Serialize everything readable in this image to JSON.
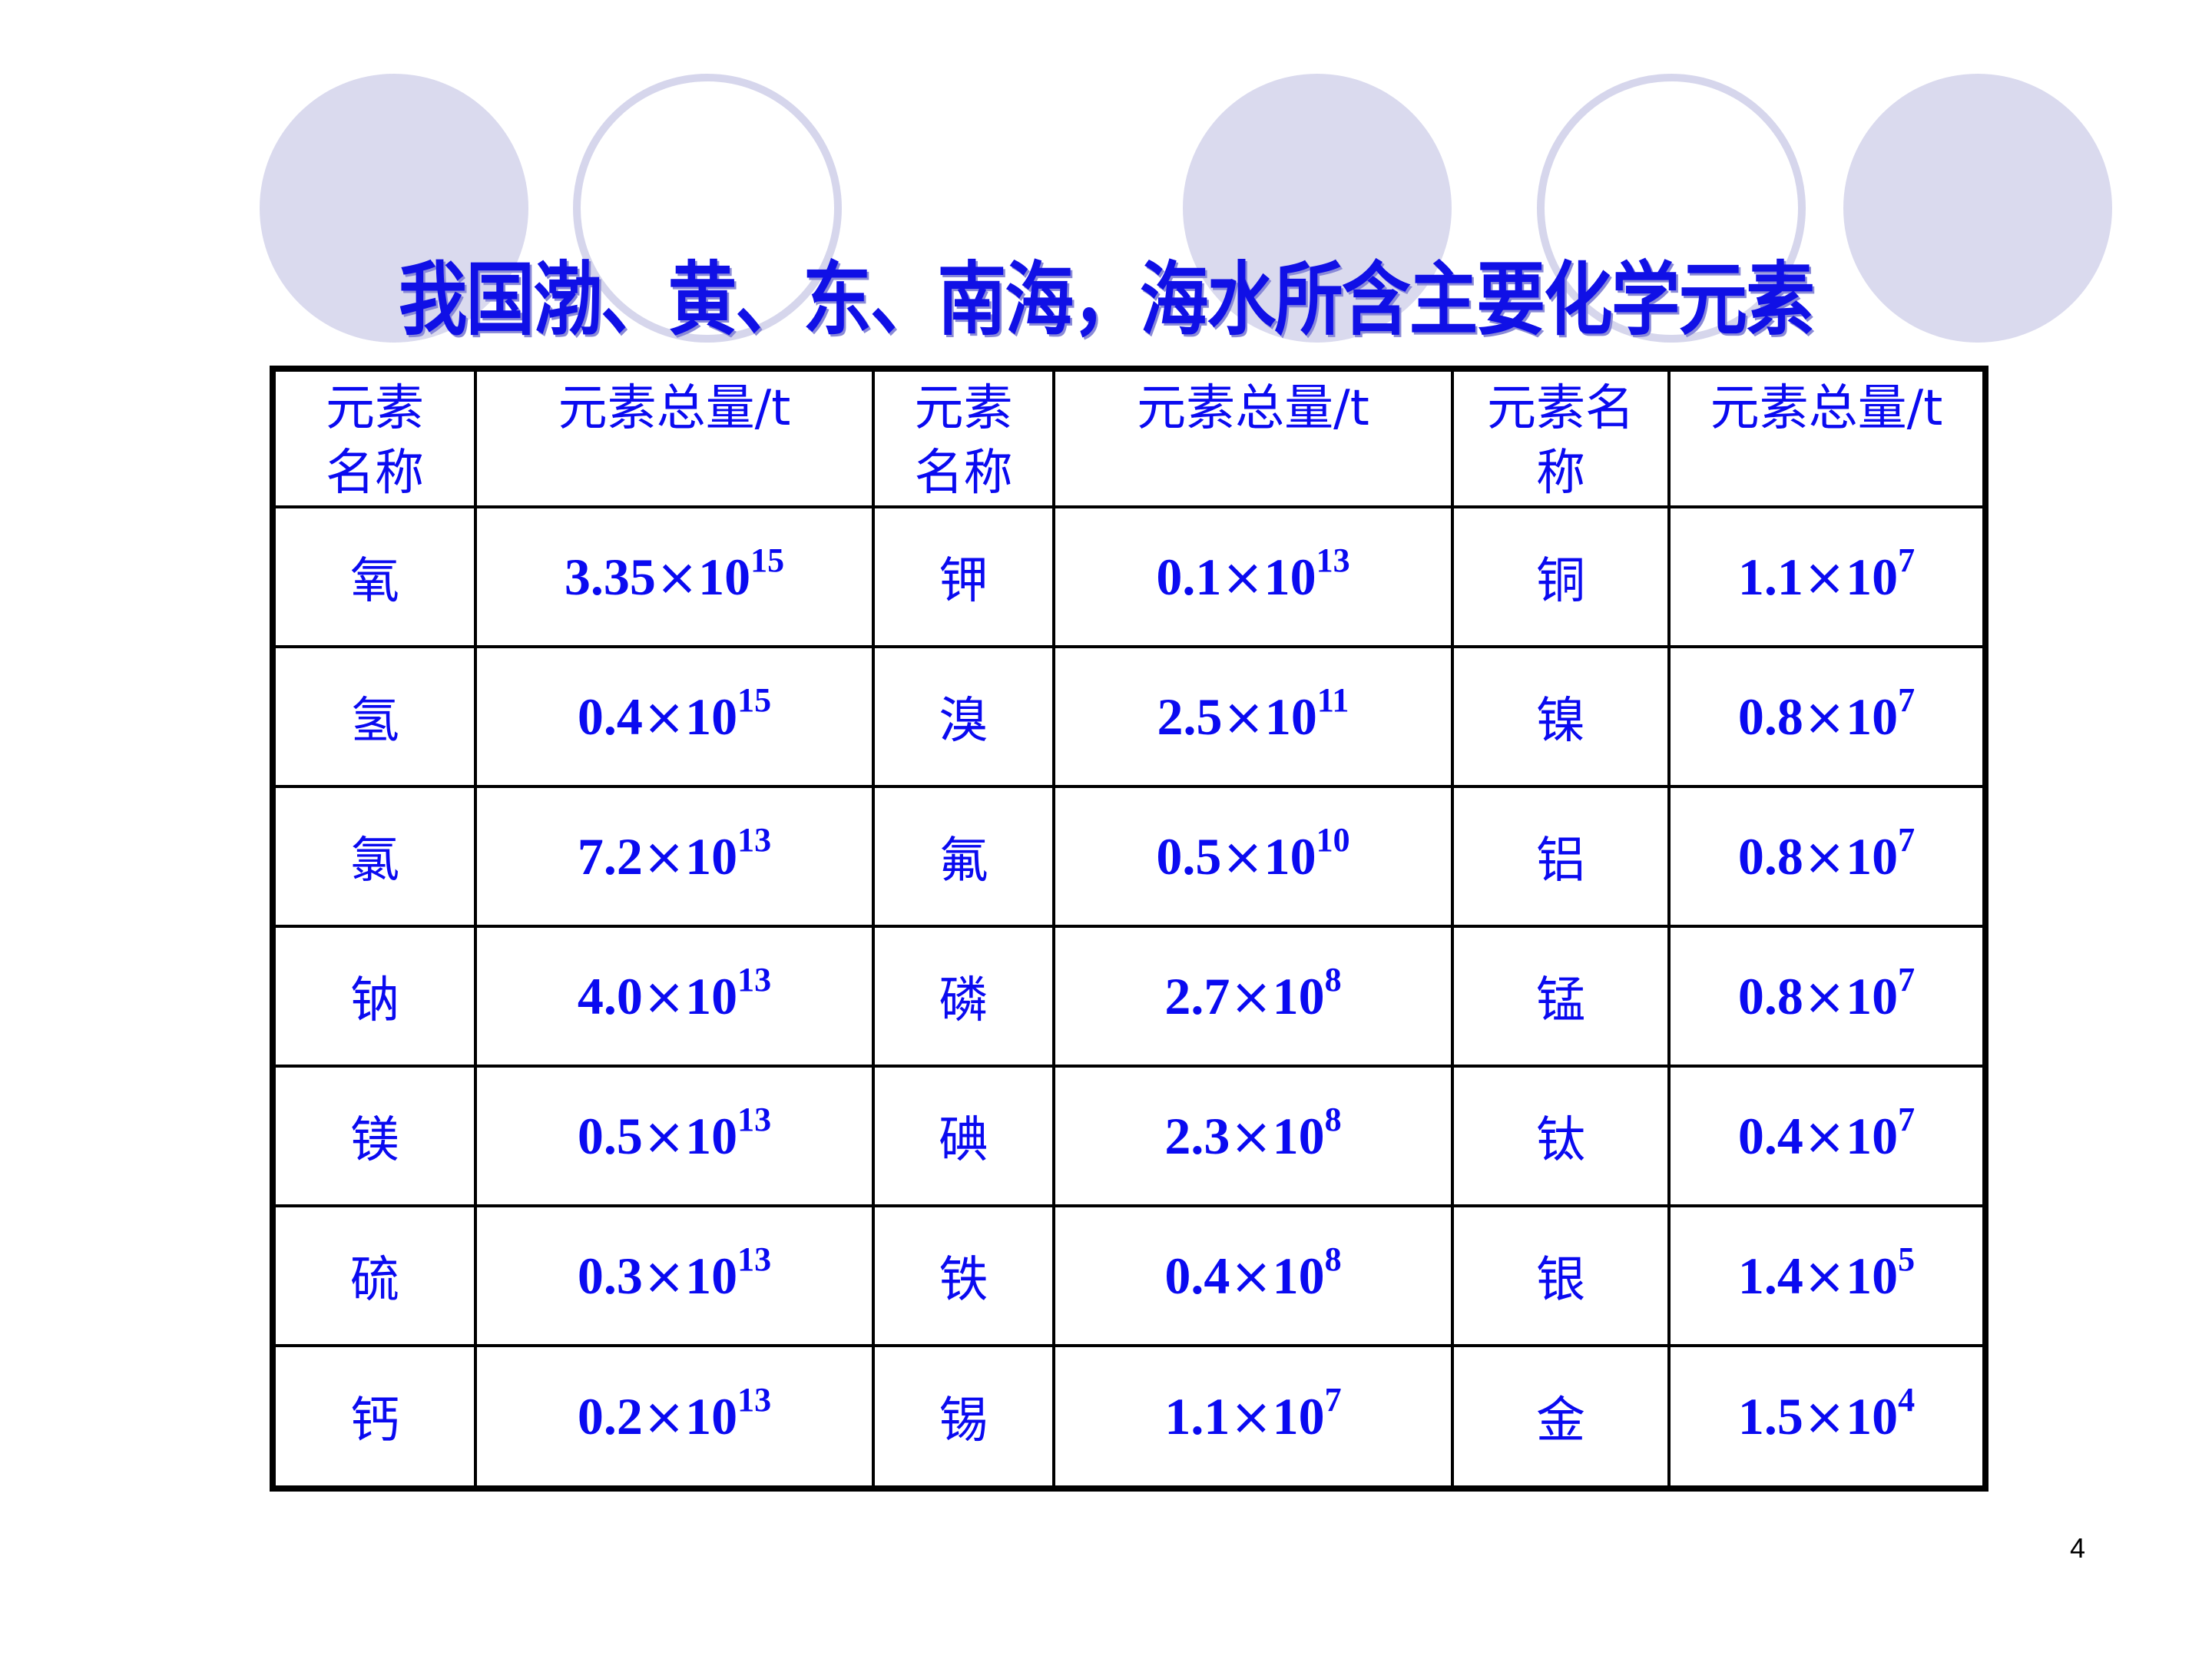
{
  "title": "我国渤、黄、东、南海，海水所含主要化学元素",
  "colors": {
    "text": "#0a0af0",
    "circle_fill": "#dadaee",
    "circle_outline": "#d6d6ec",
    "border": "#000000"
  },
  "table": {
    "headers": [
      "元素名称",
      "元素总量/t",
      "元素名称",
      "元素总量/t",
      "元素名称",
      "元素总量/t"
    ],
    "rows": [
      [
        {
          "name": "氧",
          "mant": "3.35",
          "exp": "15"
        },
        {
          "name": "钾",
          "mant": "0.1",
          "exp": "13"
        },
        {
          "name": "铜",
          "mant": "1.1",
          "exp": "7"
        }
      ],
      [
        {
          "name": "氢",
          "mant": "0.4",
          "exp": "15"
        },
        {
          "name": "溴",
          "mant": "2.5",
          "exp": "11"
        },
        {
          "name": "镍",
          "mant": "0.8",
          "exp": "7"
        }
      ],
      [
        {
          "name": "氯",
          "mant": "7.2",
          "exp": "13"
        },
        {
          "name": "氟",
          "mant": "0.5",
          "exp": "10"
        },
        {
          "name": "铝",
          "mant": "0.8",
          "exp": "7"
        }
      ],
      [
        {
          "name": "钠",
          "mant": "4.0",
          "exp": "13"
        },
        {
          "name": "磷",
          "mant": "2.7",
          "exp": "8"
        },
        {
          "name": "锰",
          "mant": "0.8",
          "exp": "7"
        }
      ],
      [
        {
          "name": "镁",
          "mant": "0.5",
          "exp": "13"
        },
        {
          "name": "碘",
          "mant": "2.3",
          "exp": "8"
        },
        {
          "name": "钛",
          "mant": "0.4",
          "exp": "7"
        }
      ],
      [
        {
          "name": "硫",
          "mant": "0.3",
          "exp": "13"
        },
        {
          "name": "铁",
          "mant": "0.4",
          "exp": "8"
        },
        {
          "name": "银",
          "mant": "1.4",
          "exp": "5"
        }
      ],
      [
        {
          "name": "钙",
          "mant": "0.2",
          "exp": "13"
        },
        {
          "name": "锡",
          "mant": "1.1",
          "exp": "7"
        },
        {
          "name": "金",
          "mant": "1.5",
          "exp": "4"
        }
      ]
    ],
    "times_sign": "×",
    "base": "10"
  },
  "page_number": "4"
}
